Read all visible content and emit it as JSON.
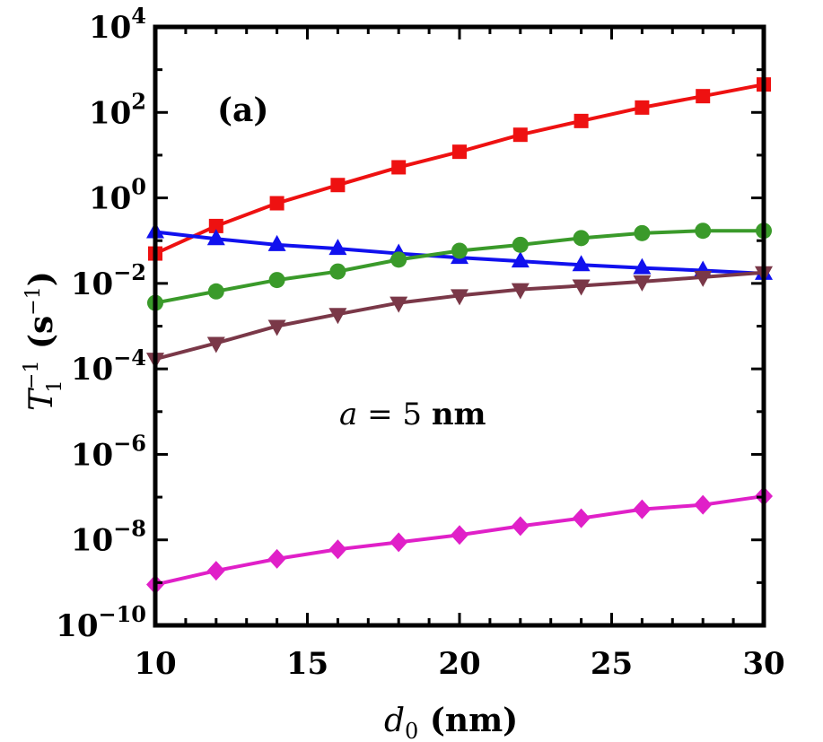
{
  "chart_data": {
    "type": "line",
    "panel_label": "(a)",
    "annotation": {
      "variable": "a",
      "relation": " = 5 ",
      "unit": "nm"
    },
    "xlabel": {
      "symbol": "d",
      "subscript": "0",
      "unit": " (nm)"
    },
    "ylabel": {
      "symbol": "T",
      "superscript": "−1",
      "subscript": "1",
      "unit_open": " (s",
      "unit_sup": "−1",
      "unit_close": ")"
    },
    "xlim": [
      10,
      30
    ],
    "ylim": [
      1e-10,
      10000
    ],
    "y_scale": "log",
    "x_ticks": [
      {
        "value": 10,
        "label": "10"
      },
      {
        "value": 15,
        "label": "15"
      },
      {
        "value": 20,
        "label": "20"
      },
      {
        "value": 25,
        "label": "25"
      },
      {
        "value": 30,
        "label": "30"
      }
    ],
    "y_ticks": [
      {
        "value": 1e-10,
        "base": "10",
        "exp": "−10"
      },
      {
        "value": 1e-08,
        "base": "10",
        "exp": "−8"
      },
      {
        "value": 1e-06,
        "base": "10",
        "exp": "−6"
      },
      {
        "value": 0.0001,
        "base": "10",
        "exp": "−4"
      },
      {
        "value": 0.01,
        "base": "10",
        "exp": "−2"
      },
      {
        "value": 1,
        "base": "10",
        "exp": "0"
      },
      {
        "value": 100,
        "base": "10",
        "exp": "2"
      },
      {
        "value": 10000,
        "base": "10",
        "exp": "4"
      }
    ],
    "grid": false,
    "legend": "none",
    "x": [
      10,
      12,
      14,
      16,
      18,
      20,
      22,
      24,
      26,
      28,
      30
    ],
    "series": [
      {
        "marker": "square",
        "color": "#ee1111",
        "values": [
          0.05,
          0.22,
          0.75,
          2.0,
          5.2,
          12,
          30,
          63,
          130,
          240,
          450
        ]
      },
      {
        "marker": "triangle-up",
        "color": "#1111ee",
        "values": [
          0.16,
          0.11,
          0.08,
          0.065,
          0.05,
          0.04,
          0.033,
          0.027,
          0.023,
          0.02,
          0.017
        ]
      },
      {
        "marker": "circle",
        "color": "#3a9a2a",
        "values": [
          0.0035,
          0.0065,
          0.012,
          0.019,
          0.036,
          0.058,
          0.08,
          0.115,
          0.15,
          0.17,
          0.17
        ]
      },
      {
        "marker": "triangle-down",
        "color": "#7a3848",
        "values": [
          0.00017,
          0.0004,
          0.001,
          0.0019,
          0.0035,
          0.0052,
          0.0072,
          0.0088,
          0.011,
          0.014,
          0.018
        ]
      },
      {
        "marker": "diamond",
        "color": "#e020c8",
        "values": [
          9e-10,
          1.9e-09,
          3.6e-09,
          6e-09,
          8.8e-09,
          1.3e-08,
          2.1e-08,
          3.2e-08,
          5.2e-08,
          6.6e-08,
          1.05e-07
        ]
      }
    ]
  }
}
